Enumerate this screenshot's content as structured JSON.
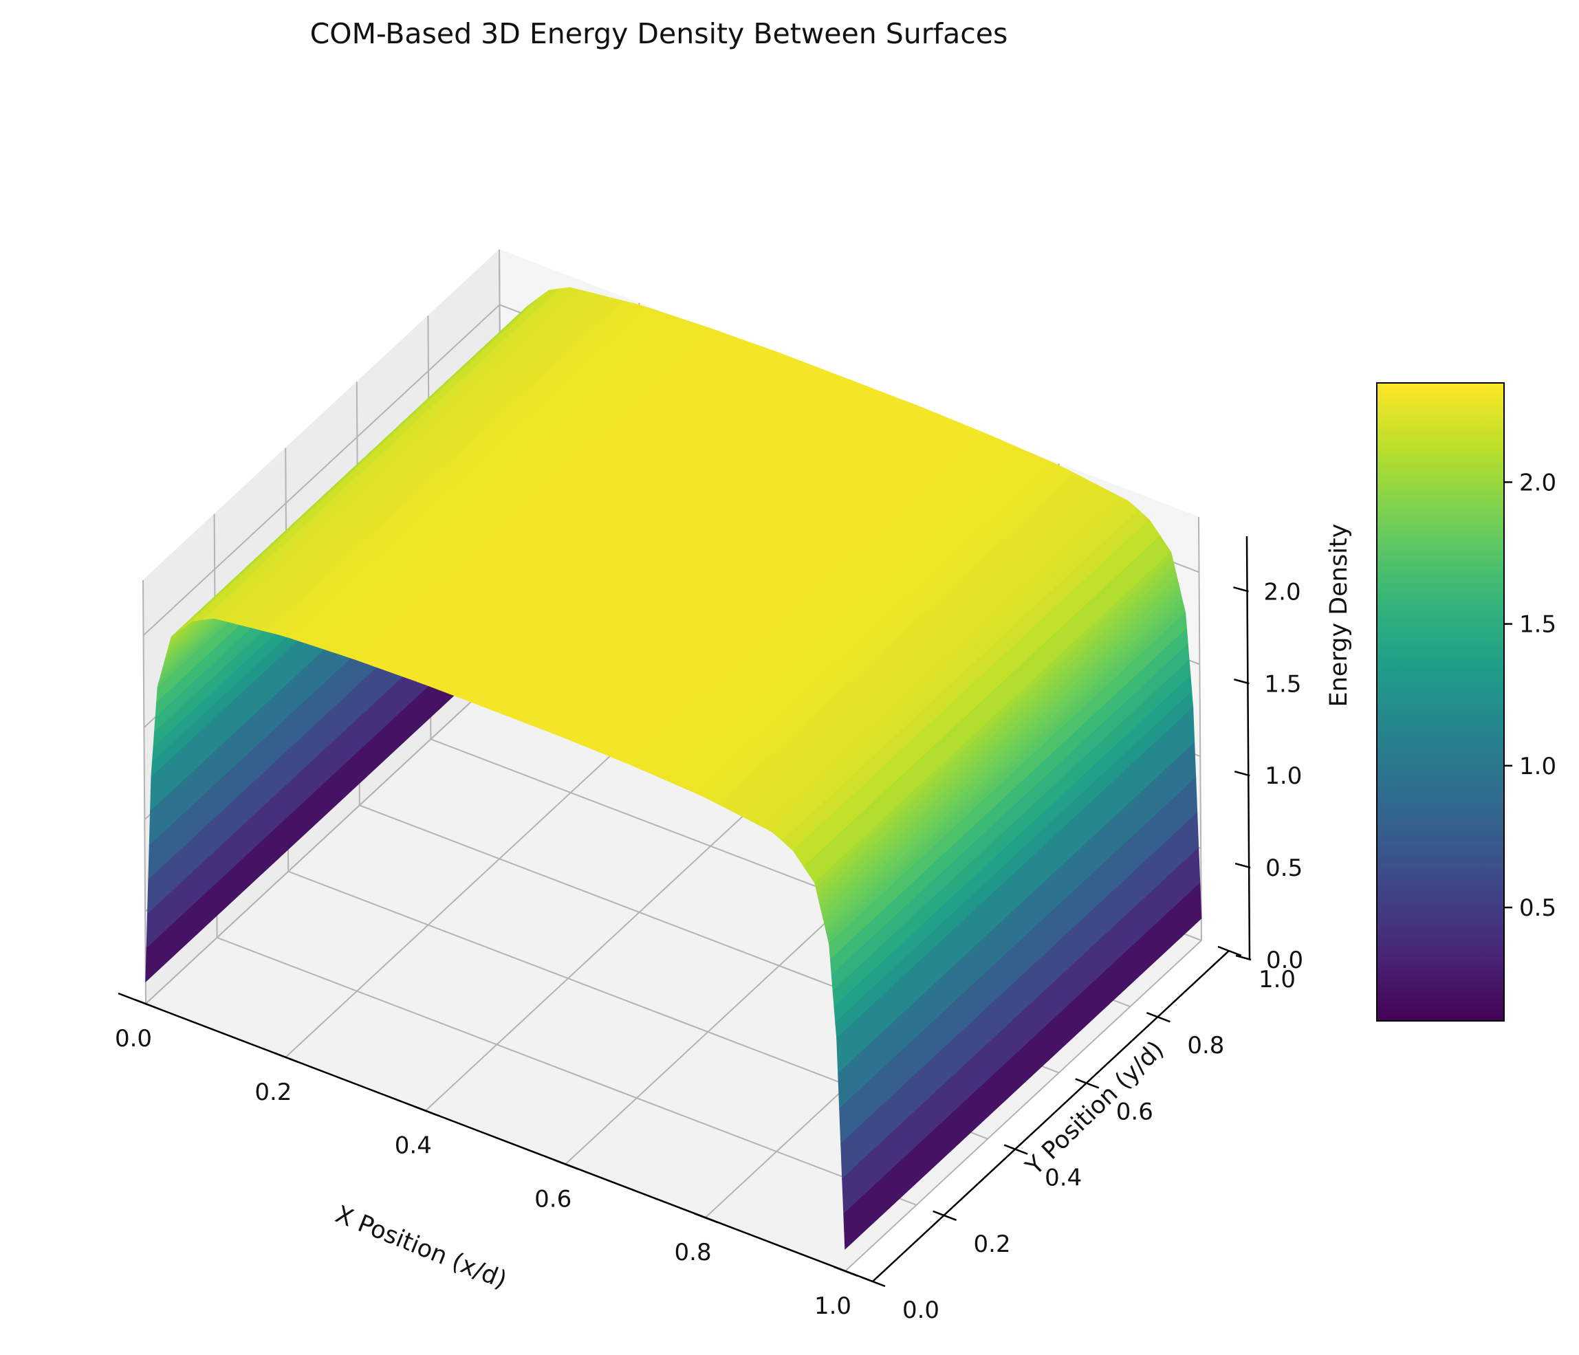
{
  "chart_data": {
    "type": "surface3d",
    "title": "COM-Based 3D Energy Density Between Surfaces",
    "xlabel": "X Position (x/d)",
    "ylabel": "Y Position (y/d)",
    "zlabel": "Energy Density",
    "colormap": "viridis",
    "xlim": [
      0,
      1
    ],
    "ylim": [
      0,
      1
    ],
    "zlim": [
      0,
      2.3
    ],
    "x_ticks": [
      "0.0",
      "0.2",
      "0.4",
      "0.6",
      "0.8",
      "1.0"
    ],
    "y_ticks": [
      "0.0",
      "0.2",
      "0.4",
      "0.6",
      "0.8",
      "1.0"
    ],
    "z_ticks": [
      "0.0",
      "0.5",
      "1.0",
      "1.5",
      "2.0"
    ],
    "colorbar": {
      "range": [
        0.1,
        2.35
      ],
      "ticks": [
        "0.5",
        "1.0",
        "1.5",
        "2.0"
      ]
    },
    "profile_x": [
      0.0,
      0.01,
      0.02,
      0.04,
      0.07,
      0.1,
      0.2,
      0.3,
      0.4,
      0.5,
      0.6,
      0.7,
      0.8,
      0.9,
      0.93,
      0.96,
      0.98,
      0.99,
      1.0
    ],
    "profile_z": [
      0.12,
      1.25,
      1.75,
      2.05,
      2.18,
      2.24,
      2.29,
      2.31,
      2.32,
      2.32,
      2.32,
      2.31,
      2.29,
      2.24,
      2.18,
      2.05,
      1.75,
      1.25,
      0.12
    ],
    "y_dependence": "constant",
    "grid": true
  }
}
